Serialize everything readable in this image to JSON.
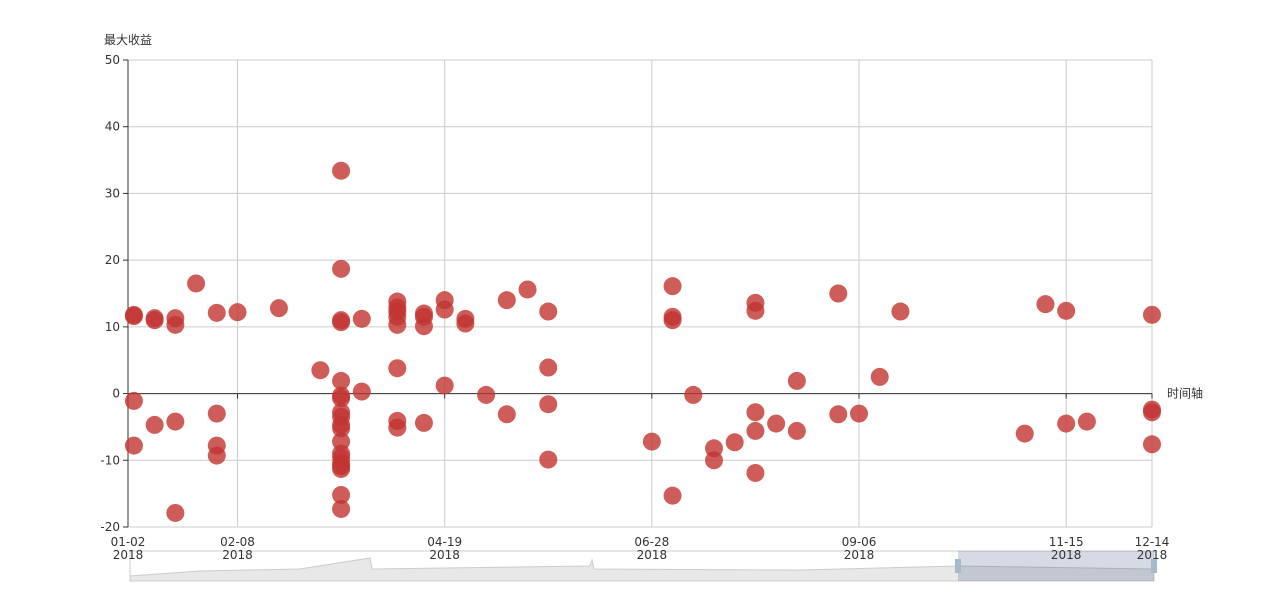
{
  "chart_data": {
    "type": "scatter",
    "y_label": "最大收益",
    "x_label": "时间轴",
    "color": "#c23531",
    "grid": true,
    "x": [
      "2018-01-04",
      "2018-01-04",
      "2018-01-04",
      "2018-01-04",
      "2018-01-11",
      "2018-01-11",
      "2018-01-11",
      "2018-01-18",
      "2018-01-18",
      "2018-01-18",
      "2018-01-18",
      "2018-01-25",
      "2018-02-01",
      "2018-02-01",
      "2018-02-01",
      "2018-02-01",
      "2018-02-08",
      "2018-02-22",
      "2018-03-08",
      "2018-03-15",
      "2018-03-15",
      "2018-03-15",
      "2018-03-15",
      "2018-03-15",
      "2018-03-15",
      "2018-03-15",
      "2018-03-15",
      "2018-03-15",
      "2018-03-15",
      "2018-03-15",
      "2018-03-15",
      "2018-03-15",
      "2018-03-15",
      "2018-03-15",
      "2018-03-15",
      "2018-03-15",
      "2018-03-15",
      "2018-03-15",
      "2018-03-22",
      "2018-03-22",
      "2018-04-03",
      "2018-04-03",
      "2018-04-03",
      "2018-04-03",
      "2018-04-03",
      "2018-04-03",
      "2018-04-03",
      "2018-04-03",
      "2018-04-12",
      "2018-04-12",
      "2018-04-12",
      "2018-04-12",
      "2018-04-19",
      "2018-04-19",
      "2018-04-19",
      "2018-04-26",
      "2018-04-26",
      "2018-05-03",
      "2018-05-10",
      "2018-05-10",
      "2018-05-17",
      "2018-05-24",
      "2018-05-24",
      "2018-05-24",
      "2018-05-24",
      "2018-06-28",
      "2018-07-05",
      "2018-07-05",
      "2018-07-05",
      "2018-07-05",
      "2018-07-12",
      "2018-07-19",
      "2018-07-19",
      "2018-07-26",
      "2018-08-02",
      "2018-08-02",
      "2018-08-02",
      "2018-08-02",
      "2018-08-02",
      "2018-08-09",
      "2018-08-16",
      "2018-08-16",
      "2018-08-30",
      "2018-08-30",
      "2018-09-06",
      "2018-09-13",
      "2018-09-20",
      "2018-11-01",
      "2018-11-08",
      "2018-11-15",
      "2018-11-15",
      "2018-11-22",
      "2018-12-14",
      "2018-12-14",
      "2018-12-14",
      "2018-12-14"
    ],
    "values": [
      11.8,
      11.6,
      -1.1,
      -7.8,
      11.3,
      11.0,
      -4.7,
      11.3,
      10.3,
      -4.2,
      -17.9,
      16.5,
      12.1,
      -3.0,
      -7.8,
      -9.3,
      12.2,
      12.8,
      3.5,
      33.4,
      18.7,
      11.0,
      10.7,
      1.9,
      -0.3,
      -0.7,
      -2.8,
      -3.5,
      -4.7,
      -5.2,
      -7.2,
      -9.0,
      -9.6,
      -10.4,
      -10.9,
      -11.3,
      -15.2,
      -17.3,
      11.2,
      0.3,
      13.8,
      12.9,
      12.3,
      11.5,
      10.3,
      3.8,
      -4.1,
      -5.1,
      12.0,
      11.5,
      10.1,
      -4.4,
      14.0,
      12.6,
      1.2,
      11.2,
      10.5,
      -0.2,
      14.0,
      -3.1,
      15.6,
      12.3,
      3.9,
      -1.6,
      -9.9,
      -7.2,
      16.1,
      11.5,
      11.0,
      -15.3,
      -0.2,
      -8.2,
      -10.0,
      -7.3,
      13.6,
      12.4,
      -2.8,
      -5.6,
      -11.9,
      -4.5,
      1.9,
      -5.6,
      15.0,
      -3.1,
      -3.0,
      2.5,
      12.3,
      -6.0,
      13.4,
      12.4,
      -4.5,
      -4.2,
      11.8,
      -2.4,
      -2.8,
      -7.6
    ],
    "xlim": [
      "2018-01-02",
      "2018-12-14"
    ],
    "xticks": [
      {
        "value": "2018-01-02",
        "label": "01-02\n2018"
      },
      {
        "value": "2018-02-08",
        "label": "02-08\n2018"
      },
      {
        "value": "2018-04-19",
        "label": "04-19\n2018"
      },
      {
        "value": "2018-06-28",
        "label": "06-28\n2018"
      },
      {
        "value": "2018-09-06",
        "label": "09-06\n2018"
      },
      {
        "value": "2018-11-15",
        "label": "11-15\n2018"
      },
      {
        "value": "2018-12-14",
        "label": "12-14\n2018"
      }
    ],
    "ylim": [
      -20,
      50
    ],
    "yticks": [
      -20,
      -10,
      0,
      10,
      20,
      30,
      40,
      50
    ]
  }
}
